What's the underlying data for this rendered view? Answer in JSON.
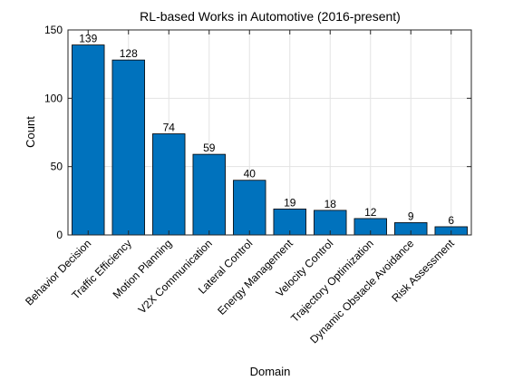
{
  "chart_data": {
    "type": "bar",
    "title": "RL-based Works in Automotive (2016-present)",
    "xlabel": "Domain",
    "ylabel": "Count",
    "categories": [
      "Behavior Decision",
      "Traffic Efficiency",
      "Motion Planning",
      "V2X Communication",
      "Lateral Control",
      "Energy Management",
      "Velocity Control",
      "Trajectory Optimization",
      "Dynamic Obstacle Avoidance",
      "Risk Assessment"
    ],
    "values": [
      139,
      128,
      74,
      59,
      40,
      19,
      18,
      12,
      9,
      6
    ],
    "ylim": [
      0,
      150
    ],
    "yticks": [
      0,
      50,
      100,
      150
    ],
    "grid": true,
    "bar_color": "#0072BD",
    "bar_edge_color": "#000000",
    "show_data_labels": true
  }
}
